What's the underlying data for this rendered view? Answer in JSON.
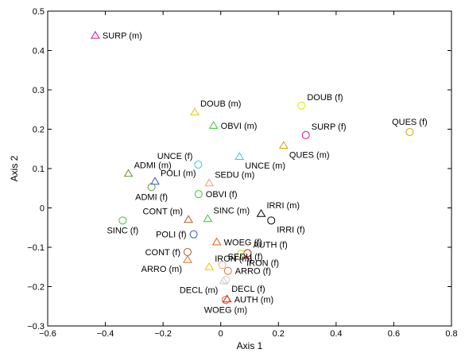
{
  "chart_data": {
    "type": "scatter",
    "xlabel": "Axis 1",
    "ylabel": "Axis 2",
    "xlim": [
      -0.6,
      0.8
    ],
    "ylim": [
      -0.3,
      0.5
    ],
    "x_ticks": [
      -0.6,
      -0.4,
      -0.2,
      0,
      0.2,
      0.4,
      0.6,
      0.8
    ],
    "x_tick_labels": [
      "−0.6",
      "−0.4",
      "−0.2",
      "0",
      "0.2",
      "0.4",
      "0.6",
      "0.8"
    ],
    "y_ticks": [
      -0.3,
      -0.2,
      -0.1,
      0,
      0.1,
      0.2,
      0.3,
      0.4,
      0.5
    ],
    "y_tick_labels": [
      "−0.3",
      "−0.2",
      "−0.1",
      "0",
      "0.1",
      "0.2",
      "0.3",
      "0.4",
      "0.5"
    ],
    "grid": false,
    "points": [
      {
        "label": "SURP (m)",
        "x": -0.435,
        "y": 0.438,
        "marker": "triangle",
        "color": "#e0108a",
        "label_pos": "right"
      },
      {
        "label": "DOUB (m)",
        "x": -0.09,
        "y": 0.243,
        "marker": "triangle",
        "color": "#e6c800",
        "label_pos": "above-right"
      },
      {
        "label": "OBVI (m)",
        "x": -0.025,
        "y": 0.209,
        "marker": "triangle",
        "color": "#33cc33",
        "label_pos": "right"
      },
      {
        "label": "DOUB (f)",
        "x": 0.28,
        "y": 0.26,
        "marker": "circle",
        "color": "#e6e600",
        "label_pos": "above-right"
      },
      {
        "label": "SURP (f)",
        "x": 0.295,
        "y": 0.185,
        "marker": "circle",
        "color": "#e0108a",
        "label_pos": "above-right"
      },
      {
        "label": "QUES (m)",
        "x": 0.218,
        "y": 0.158,
        "marker": "triangle",
        "color": "#d4a000",
        "label_pos": "below-right"
      },
      {
        "label": "QUES (f)",
        "x": 0.655,
        "y": 0.193,
        "marker": "circle",
        "color": "#d4a000",
        "label_pos": "above"
      },
      {
        "label": "UNCE (f)",
        "x": -0.078,
        "y": 0.11,
        "marker": "circle",
        "color": "#33cccc",
        "label_pos": "above-left"
      },
      {
        "label": "UNCE (m)",
        "x": 0.065,
        "y": 0.13,
        "marker": "triangle",
        "color": "#33cccc",
        "label_pos": "below-right"
      },
      {
        "label": "ADMI (m)",
        "x": -0.32,
        "y": 0.087,
        "marker": "triangle",
        "color": "#669933",
        "label_pos": "above-right"
      },
      {
        "label": "POLI (m)",
        "x": -0.228,
        "y": 0.067,
        "marker": "triangle",
        "color": "#3355bb",
        "label_pos": "above-right"
      },
      {
        "label": "ADMI (f)",
        "x": -0.24,
        "y": 0.053,
        "marker": "circle",
        "color": "#669933",
        "label_pos": "below"
      },
      {
        "label": "SEDU (m)",
        "x": -0.04,
        "y": 0.063,
        "marker": "triangle",
        "color": "#f0a080",
        "label_pos": "above-right"
      },
      {
        "label": "OBVI (f)",
        "x": -0.077,
        "y": 0.035,
        "marker": "circle",
        "color": "#33cc33",
        "label_pos": "right"
      },
      {
        "label": "CONT (m)",
        "x": -0.112,
        "y": -0.03,
        "marker": "triangle",
        "color": "#b05a20",
        "label_pos": "above-left"
      },
      {
        "label": "SINC (m)",
        "x": -0.045,
        "y": -0.028,
        "marker": "triangle",
        "color": "#33cc33",
        "label_pos": "above-right"
      },
      {
        "label": "IRRI (m)",
        "x": 0.14,
        "y": -0.015,
        "marker": "triangle",
        "color": "#000000",
        "label_pos": "above-right"
      },
      {
        "label": "IRRI (f)",
        "x": 0.175,
        "y": -0.032,
        "marker": "circle",
        "color": "#000000",
        "label_pos": "below-right"
      },
      {
        "label": "SINC (f)",
        "x": -0.34,
        "y": -0.032,
        "marker": "circle",
        "color": "#33cc33",
        "label_pos": "below"
      },
      {
        "label": "POLI (f)",
        "x": -0.094,
        "y": -0.067,
        "marker": "circle",
        "color": "#3355bb",
        "label_pos": "left"
      },
      {
        "label": "WOEG (f)",
        "x": -0.014,
        "y": -0.087,
        "marker": "triangle",
        "color": "#e06020",
        "label_pos": "right"
      },
      {
        "label": "AUTH (f)",
        "x": 0.093,
        "y": -0.115,
        "marker": "circle",
        "color": "#e01010",
        "label_pos": "above-right"
      },
      {
        "label": "IRON (f)",
        "x": 0.07,
        "y": -0.117,
        "marker": "circle",
        "color": "#e6c800",
        "label_pos": "below-right"
      },
      {
        "label": "CONT (f)",
        "x": -0.115,
        "y": -0.112,
        "marker": "circle",
        "color": "#b05a20",
        "label_pos": "left"
      },
      {
        "label": "ARRO (m)",
        "x": -0.115,
        "y": -0.132,
        "marker": "triangle",
        "color": "#e07030",
        "label_pos": "below-left"
      },
      {
        "label": "IRON (m)",
        "x": -0.04,
        "y": -0.15,
        "marker": "triangle",
        "color": "#e6c800",
        "label_pos": "above-right"
      },
      {
        "label": "SEDU (f)",
        "x": 0.005,
        "y": -0.145,
        "marker": "circle",
        "color": "#f0a080",
        "label_pos": "above-right"
      },
      {
        "label": "ARRO (f)",
        "x": 0.025,
        "y": -0.16,
        "marker": "circle",
        "color": "#e07030",
        "label_pos": "right"
      },
      {
        "label": "DECL (f)",
        "x": 0.018,
        "y": -0.183,
        "marker": "circle",
        "color": "#cccccc",
        "label_pos": "below-right"
      },
      {
        "label": "DECL (m)",
        "x": 0.01,
        "y": -0.186,
        "marker": "triangle",
        "color": "#cccccc",
        "label_pos": "below-left"
      },
      {
        "label": "AUTH (m)",
        "x": 0.022,
        "y": -0.232,
        "marker": "triangle",
        "color": "#e01010",
        "label_pos": "right"
      },
      {
        "label": "WOEG (m)",
        "x": 0.017,
        "y": -0.234,
        "marker": "circle",
        "color": "#e06020",
        "label_pos": "below"
      }
    ]
  }
}
